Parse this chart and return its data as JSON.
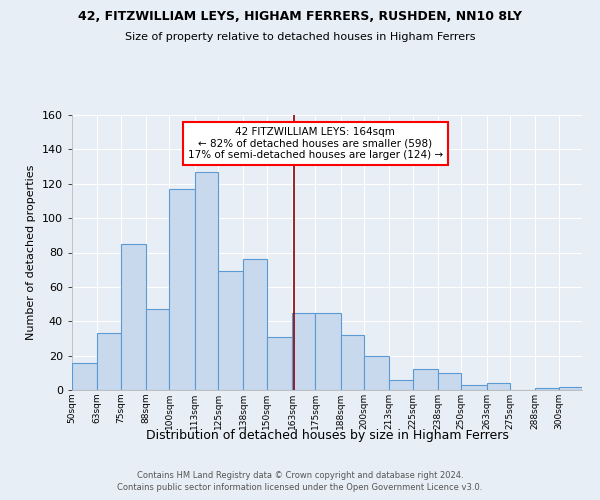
{
  "title": "42, FITZWILLIAM LEYS, HIGHAM FERRERS, RUSHDEN, NN10 8LY",
  "subtitle": "Size of property relative to detached houses in Higham Ferrers",
  "xlabel": "Distribution of detached houses by size in Higham Ferrers",
  "ylabel": "Number of detached properties",
  "footer1": "Contains HM Land Registry data © Crown copyright and database right 2024.",
  "footer2": "Contains public sector information licensed under the Open Government Licence v3.0.",
  "bin_labels": [
    "50sqm",
    "63sqm",
    "75sqm",
    "88sqm",
    "100sqm",
    "113sqm",
    "125sqm",
    "138sqm",
    "150sqm",
    "163sqm",
    "175sqm",
    "188sqm",
    "200sqm",
    "213sqm",
    "225sqm",
    "238sqm",
    "250sqm",
    "263sqm",
    "275sqm",
    "288sqm",
    "300sqm"
  ],
  "bin_edges": [
    50,
    63,
    75,
    88,
    100,
    113,
    125,
    138,
    150,
    163,
    175,
    188,
    200,
    213,
    225,
    238,
    250,
    263,
    275,
    288,
    300
  ],
  "bar_values": [
    16,
    33,
    85,
    47,
    117,
    127,
    69,
    76,
    31,
    45,
    45,
    32,
    20,
    6,
    12,
    10,
    3,
    4,
    0,
    1,
    2
  ],
  "bar_color": "#c9d9ed",
  "bar_edge_color": "#5b9bd5",
  "property_size": 164,
  "vline_color": "#8b0000",
  "annotation_line1": "42 FITZWILLIAM LEYS: 164sqm",
  "annotation_line2": "← 82% of detached houses are smaller (598)",
  "annotation_line3": "17% of semi-detached houses are larger (124) →",
  "annotation_box_color": "white",
  "annotation_box_edge_color": "red",
  "ylim": [
    0,
    160
  ],
  "xlim": [
    50,
    300
  ],
  "background_color": "#e8eef5",
  "grid_color": "white",
  "yticks": [
    0,
    20,
    40,
    60,
    80,
    100,
    120,
    140,
    160
  ]
}
